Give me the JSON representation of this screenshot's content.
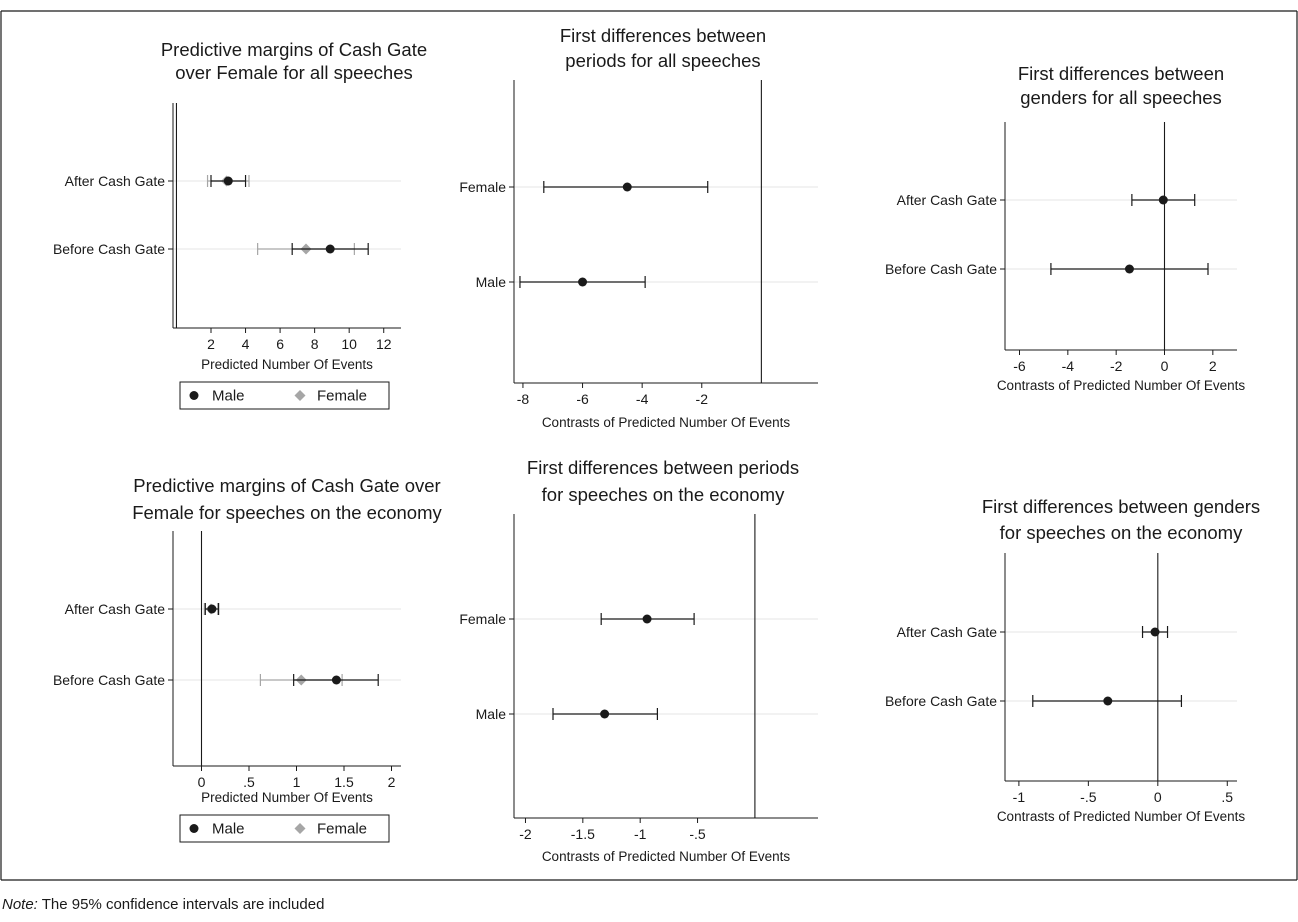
{
  "note": {
    "prefix": "Note:",
    "text": " The 95% confidence intervals are included"
  },
  "legend": {
    "male": "Male",
    "female": "Female"
  },
  "colors": {
    "male": "#1a1a1a",
    "female": "#a6a6a6",
    "grid": "#e6e6e6",
    "axis": "#1a1a1a"
  },
  "chart_data": [
    {
      "type": "scatter",
      "title": [
        "Predictive margins of Cash Gate",
        "over Female for all speeches"
      ],
      "xlabel": "Predicted Number Of Events",
      "categories": [
        "After Cash Gate",
        "Before Cash Gate"
      ],
      "xlim": [
        -0.2,
        13
      ],
      "xticks": [
        2,
        4,
        6,
        8,
        10,
        12
      ],
      "xtick_labels": [
        "2",
        "4",
        "6",
        "8",
        "10",
        "12"
      ],
      "refline": 0,
      "legend": [
        "Male",
        "Female"
      ],
      "series": [
        {
          "name": "Male",
          "marker": "circle",
          "estimates": [
            3.0,
            8.9
          ],
          "ci_low": [
            2.0,
            6.7
          ],
          "ci_high": [
            4.0,
            11.1
          ]
        },
        {
          "name": "Female",
          "marker": "diamond",
          "estimates": [
            2.9,
            7.5
          ],
          "ci_low": [
            1.8,
            4.7
          ],
          "ci_high": [
            4.2,
            10.3
          ]
        }
      ]
    },
    {
      "type": "scatter",
      "title": [
        "First differences between",
        "periods for all speeches"
      ],
      "xlabel": "Contrasts of Predicted Number Of Events",
      "categories": [
        "Female",
        "Male"
      ],
      "xlim": [
        -8.3,
        1.9
      ],
      "xticks": [
        -8,
        -6,
        -4,
        -2
      ],
      "xtick_labels": [
        "-8",
        "-6",
        "-4",
        "-2"
      ],
      "refline": 0,
      "series": [
        {
          "name": "",
          "marker": "circle",
          "estimates": [
            -4.5,
            -6.0
          ],
          "ci_low": [
            -7.3,
            -8.1
          ],
          "ci_high": [
            -1.8,
            -3.9
          ]
        }
      ]
    },
    {
      "type": "scatter",
      "title": [
        "First differences between",
        "genders for all speeches"
      ],
      "xlabel": "Contrasts of Predicted Number Of Events",
      "categories": [
        "After Cash Gate",
        "Before Cash Gate"
      ],
      "xlim": [
        -6.6,
        3.0
      ],
      "xticks": [
        -6,
        -4,
        -2,
        0,
        2
      ],
      "xtick_labels": [
        "-6",
        "-4",
        "-2",
        "0",
        "2"
      ],
      "refline": 0,
      "series": [
        {
          "name": "",
          "marker": "circle",
          "estimates": [
            -0.05,
            -1.45
          ],
          "ci_low": [
            -1.35,
            -4.7
          ],
          "ci_high": [
            1.25,
            1.8
          ]
        }
      ]
    },
    {
      "type": "scatter",
      "title": [
        "Predictive margins of Cash Gate over",
        "Female for speeches on the economy"
      ],
      "xlabel": "Predicted Number Of Events",
      "categories": [
        "After Cash Gate",
        "Before Cash Gate"
      ],
      "xlim": [
        -0.3,
        2.1
      ],
      "xticks": [
        0,
        0.5,
        1,
        1.5,
        2
      ],
      "xtick_labels": [
        "0",
        ".5",
        "1",
        "1.5",
        "2"
      ],
      "refline": 0,
      "legend": [
        "Male",
        "Female"
      ],
      "series": [
        {
          "name": "Male",
          "marker": "circle",
          "estimates": [
            0.11,
            1.42
          ],
          "ci_low": [
            0.04,
            0.97
          ],
          "ci_high": [
            0.18,
            1.86
          ]
        },
        {
          "name": "Female",
          "marker": "diamond",
          "estimates": [
            0.1,
            1.05
          ],
          "ci_low": [
            0.03,
            0.62
          ],
          "ci_high": [
            0.17,
            1.48
          ]
        }
      ]
    },
    {
      "type": "scatter",
      "title": [
        "First differences between periods",
        "for speeches on the economy"
      ],
      "xlabel": "Contrasts of Predicted Number Of Events",
      "categories": [
        "Female",
        "Male"
      ],
      "xlim": [
        -2.1,
        0.55
      ],
      "xticks": [
        -2,
        -1.5,
        -1,
        -0.5
      ],
      "xtick_labels": [
        "-2",
        "-1.5",
        "-1",
        "-.5"
      ],
      "refline": 0,
      "series": [
        {
          "name": "",
          "marker": "circle",
          "estimates": [
            -0.94,
            -1.31
          ],
          "ci_low": [
            -1.34,
            -1.76
          ],
          "ci_high": [
            -0.53,
            -0.85
          ]
        }
      ]
    },
    {
      "type": "scatter",
      "title": [
        "First differences between genders",
        "for speeches on the economy"
      ],
      "xlabel": "Contrasts of Predicted Number Of Events",
      "categories": [
        "After Cash Gate",
        "Before Cash Gate"
      ],
      "xlim": [
        -1.1,
        0.57
      ],
      "xticks": [
        -1,
        -0.5,
        0,
        0.5
      ],
      "xtick_labels": [
        "-1",
        "-.5",
        "0",
        ".5"
      ],
      "refline": 0,
      "series": [
        {
          "name": "",
          "marker": "circle",
          "estimates": [
            -0.02,
            -0.36
          ],
          "ci_low": [
            -0.11,
            -0.9
          ],
          "ci_high": [
            0.07,
            0.17
          ]
        }
      ]
    }
  ]
}
